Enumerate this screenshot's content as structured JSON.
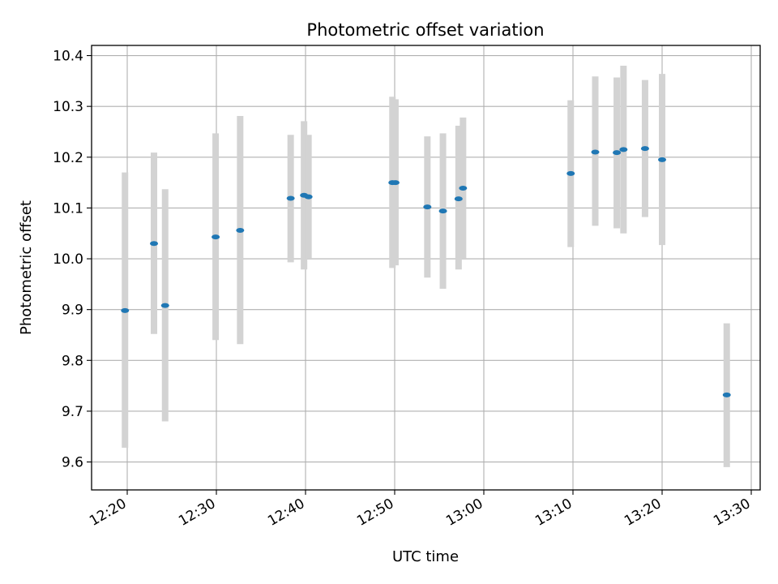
{
  "chart_data": {
    "type": "scatter",
    "title": "Photometric offset variation",
    "xlabel": "UTC time",
    "ylabel": "Photometric offset",
    "xlim": [
      "12:16:00",
      "13:31:00"
    ],
    "ylim": [
      9.545,
      10.42
    ],
    "xticks": [
      "12:20",
      "12:30",
      "12:40",
      "12:50",
      "13:00",
      "13:10",
      "13:20",
      "13:30"
    ],
    "yticks": [
      "9.6",
      "9.7",
      "9.8",
      "9.9",
      "10.0",
      "10.1",
      "10.2",
      "10.3",
      "10.4"
    ],
    "grid": true,
    "colors": {
      "marker": "#1f77b4",
      "errorbar": "#d3d3d3",
      "grid": "#b0b0b0"
    },
    "points": [
      {
        "t": "12:19:45",
        "y": 9.898,
        "lo": 9.628,
        "hi": 10.17
      },
      {
        "t": "12:23:00",
        "y": 10.03,
        "lo": 9.852,
        "hi": 10.209
      },
      {
        "t": "12:24:15",
        "y": 9.908,
        "lo": 9.68,
        "hi": 10.137
      },
      {
        "t": "12:29:55",
        "y": 10.043,
        "lo": 9.84,
        "hi": 10.247
      },
      {
        "t": "12:32:40",
        "y": 10.056,
        "lo": 9.832,
        "hi": 10.281
      },
      {
        "t": "12:38:20",
        "y": 10.119,
        "lo": 9.993,
        "hi": 10.244
      },
      {
        "t": "12:39:50",
        "y": 10.125,
        "lo": 9.979,
        "hi": 10.271
      },
      {
        "t": "12:40:20",
        "y": 10.122,
        "lo": 10.0,
        "hi": 10.244
      },
      {
        "t": "12:49:45",
        "y": 10.15,
        "lo": 9.982,
        "hi": 10.319
      },
      {
        "t": "12:50:05",
        "y": 10.15,
        "lo": 9.987,
        "hi": 10.314
      },
      {
        "t": "12:53:40",
        "y": 10.102,
        "lo": 9.963,
        "hi": 10.241
      },
      {
        "t": "12:55:25",
        "y": 10.094,
        "lo": 9.941,
        "hi": 10.247
      },
      {
        "t": "12:57:10",
        "y": 10.118,
        "lo": 9.979,
        "hi": 10.262
      },
      {
        "t": "12:57:40",
        "y": 10.139,
        "lo": 10.0,
        "hi": 10.278
      },
      {
        "t": "13:09:45",
        "y": 10.168,
        "lo": 10.023,
        "hi": 10.312
      },
      {
        "t": "13:12:30",
        "y": 10.21,
        "lo": 10.065,
        "hi": 10.359
      },
      {
        "t": "13:14:55",
        "y": 10.209,
        "lo": 10.06,
        "hi": 10.357
      },
      {
        "t": "13:15:40",
        "y": 10.215,
        "lo": 10.05,
        "hi": 10.38
      },
      {
        "t": "13:18:05",
        "y": 10.217,
        "lo": 10.082,
        "hi": 10.352
      },
      {
        "t": "13:20:00",
        "y": 10.195,
        "lo": 10.027,
        "hi": 10.364
      },
      {
        "t": "13:27:15",
        "y": 9.732,
        "lo": 9.59,
        "hi": 9.873
      }
    ]
  }
}
